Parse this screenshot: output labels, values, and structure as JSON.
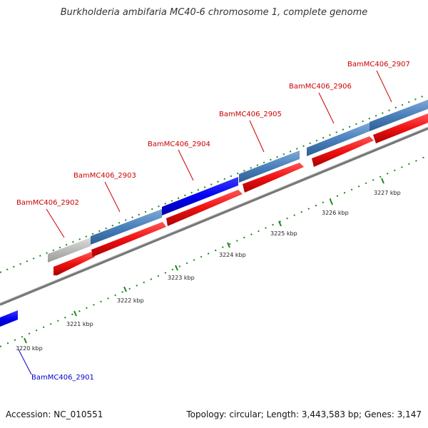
{
  "title": "Burkholderia ambifaria MC40-6 chromosome 1, complete genome",
  "footer": {
    "accession": "Accession: NC_010551",
    "summary": "Topology: circular; Length: 3,443,583 bp; Genes: 3,147"
  },
  "colors": {
    "gene_forward": "#4a80bd",
    "gene_forward_highlight": "#0000ee",
    "gene_pseudo": "#bbbbbb",
    "gene_reverse": "#ee1111",
    "backbone": "#888888",
    "tick_minor": "#1a8a1a",
    "label_forward": "#cc0000",
    "label_highlight": "#0000cc"
  },
  "kbp_labels": [
    "3220 kbp",
    "3221 kbp",
    "3222 kbp",
    "3223 kbp",
    "3224 kbp",
    "3225 kbp",
    "3226 kbp",
    "3227 kbp"
  ],
  "gene_labels": [
    {
      "name": "BamMC406_2901",
      "color": "#0000cc"
    },
    {
      "name": "BamMC406_2902",
      "color": "#cc0000"
    },
    {
      "name": "BamMC406_2903",
      "color": "#cc0000"
    },
    {
      "name": "BamMC406_2904",
      "color": "#cc0000"
    },
    {
      "name": "BamMC406_2905",
      "color": "#cc0000"
    },
    {
      "name": "BamMC406_2906",
      "color": "#cc0000"
    },
    {
      "name": "BamMC406_2907",
      "color": "#cc0000"
    }
  ]
}
